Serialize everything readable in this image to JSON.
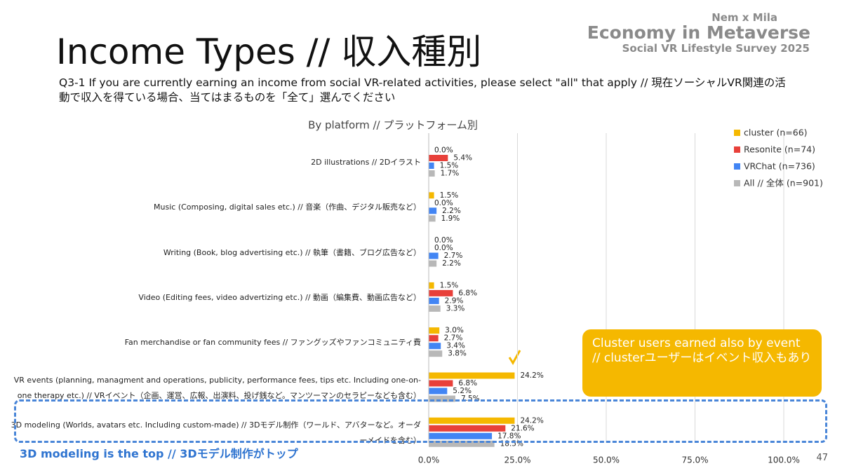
{
  "header": {
    "title": "Income Types // 収入種別",
    "question": "Q3-1 If you are currently earning an income from social VR-related activities, please select \"all\" that apply // 現在ソーシャルVR関連の活動で収入を得ている場合、当てはまるものを「全て」選んでください",
    "brand_small": "Nem x Mila",
    "brand_main": "Economy in Metaverse",
    "brand_sub": "Social VR Lifestyle Survey 2025"
  },
  "chart_data": {
    "type": "hbar",
    "title": "By platform // プラットフォーム別",
    "categories": [
      "2D illustrations // 2Dイラスト",
      "Music (Composing, digital sales etc.) // 音楽（作曲、デジタル販売など）",
      "Writing (Book, blog advertising etc.) // 執筆（書籍、ブログ広告など）",
      "Video (Editing fees, video advertizing etc.) // 動画（編集費、動画広告など）",
      "Fan merchandise or fan community fees // ファングッズやファンコミュニティ費",
      "VR events (planning, managment and operations, publicity, performance fees, tips etc. Including one-on-one therapy etc.) // VRイベント（企画、運営、広報、出演料、投げ銭など。マンツーマンのセラピーなども含む）",
      "3D modeling (Worlds, avatars etc. Including custom-made) // 3Dモデル制作（ワールド、アバターなど。オーダーメイドを含む）"
    ],
    "series": [
      {
        "name": "cluster (n=66)",
        "color": "#f5b800",
        "values": [
          0.0,
          1.5,
          0.0,
          1.5,
          3.0,
          24.2,
          24.2
        ],
        "value_labels": [
          "0.0%",
          "1.5%",
          "0.0%",
          "1.5%",
          "3.0%",
          "24.2%",
          "24.2%"
        ]
      },
      {
        "name": "Resonite (n=74)",
        "color": "#e8403a",
        "values": [
          5.4,
          0.0,
          0.0,
          6.8,
          2.7,
          6.8,
          21.6
        ],
        "value_labels": [
          "5.4%",
          "0.0%",
          "0.0%",
          "6.8%",
          "2.7%",
          "6.8%",
          "21.6%"
        ]
      },
      {
        "name": "VRChat (n=736)",
        "color": "#4285f4",
        "values": [
          1.5,
          2.2,
          2.7,
          2.9,
          3.4,
          5.2,
          17.8
        ],
        "value_labels": [
          "1.5%",
          "2.2%",
          "2.7%",
          "2.9%",
          "3.4%",
          "5.2%",
          "17.8%"
        ]
      },
      {
        "name": "All // 全体 (n=901)",
        "color": "#b8b8b8",
        "values": [
          1.7,
          1.9,
          2.2,
          3.3,
          3.8,
          7.5,
          18.5
        ],
        "value_labels": [
          "1.7%",
          "1.9%",
          "2.2%",
          "3.3%",
          "3.8%",
          "7.5%",
          "18.5%"
        ]
      }
    ],
    "xlim": [
      0,
      100
    ],
    "xticks": [
      {
        "value": 0,
        "label": "0.0%"
      },
      {
        "value": 25,
        "label": "25.0%"
      },
      {
        "value": 50,
        "label": "50.0%"
      },
      {
        "value": 75,
        "label": "75.0%"
      },
      {
        "value": 100,
        "label": "100.0%"
      }
    ],
    "grid": true,
    "legend": "top-right"
  },
  "annotations": {
    "callout": "Cluster users earned also by event // clusterユーザーはイベント収入もあり",
    "highlight": "3D modeling is the top // 3Dモデル制作がトップ"
  },
  "page_number": "47"
}
